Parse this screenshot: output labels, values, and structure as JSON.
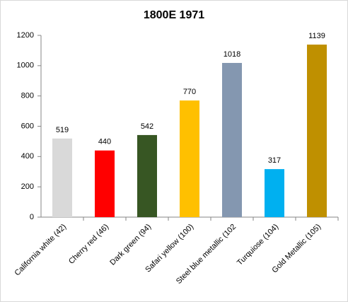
{
  "chart_data": {
    "type": "bar",
    "title": "1800E 1971",
    "categories": [
      "California white (42)",
      "Cherry red (46)",
      "Dark green (94)",
      "Safari yellow (100)",
      "Steel blue metallic (102",
      "Turquiose (104)",
      "Gold Metallic (105)"
    ],
    "values": [
      519,
      440,
      542,
      770,
      1018,
      317,
      1139
    ],
    "colors": [
      "#d9d9d9",
      "#ff0000",
      "#375623",
      "#ffc000",
      "#8497b0",
      "#00b0f0",
      "#bf9000"
    ],
    "ylim": [
      0,
      1200
    ],
    "yticks": [
      0,
      200,
      400,
      600,
      800,
      1000,
      1200
    ],
    "grid": false
  }
}
